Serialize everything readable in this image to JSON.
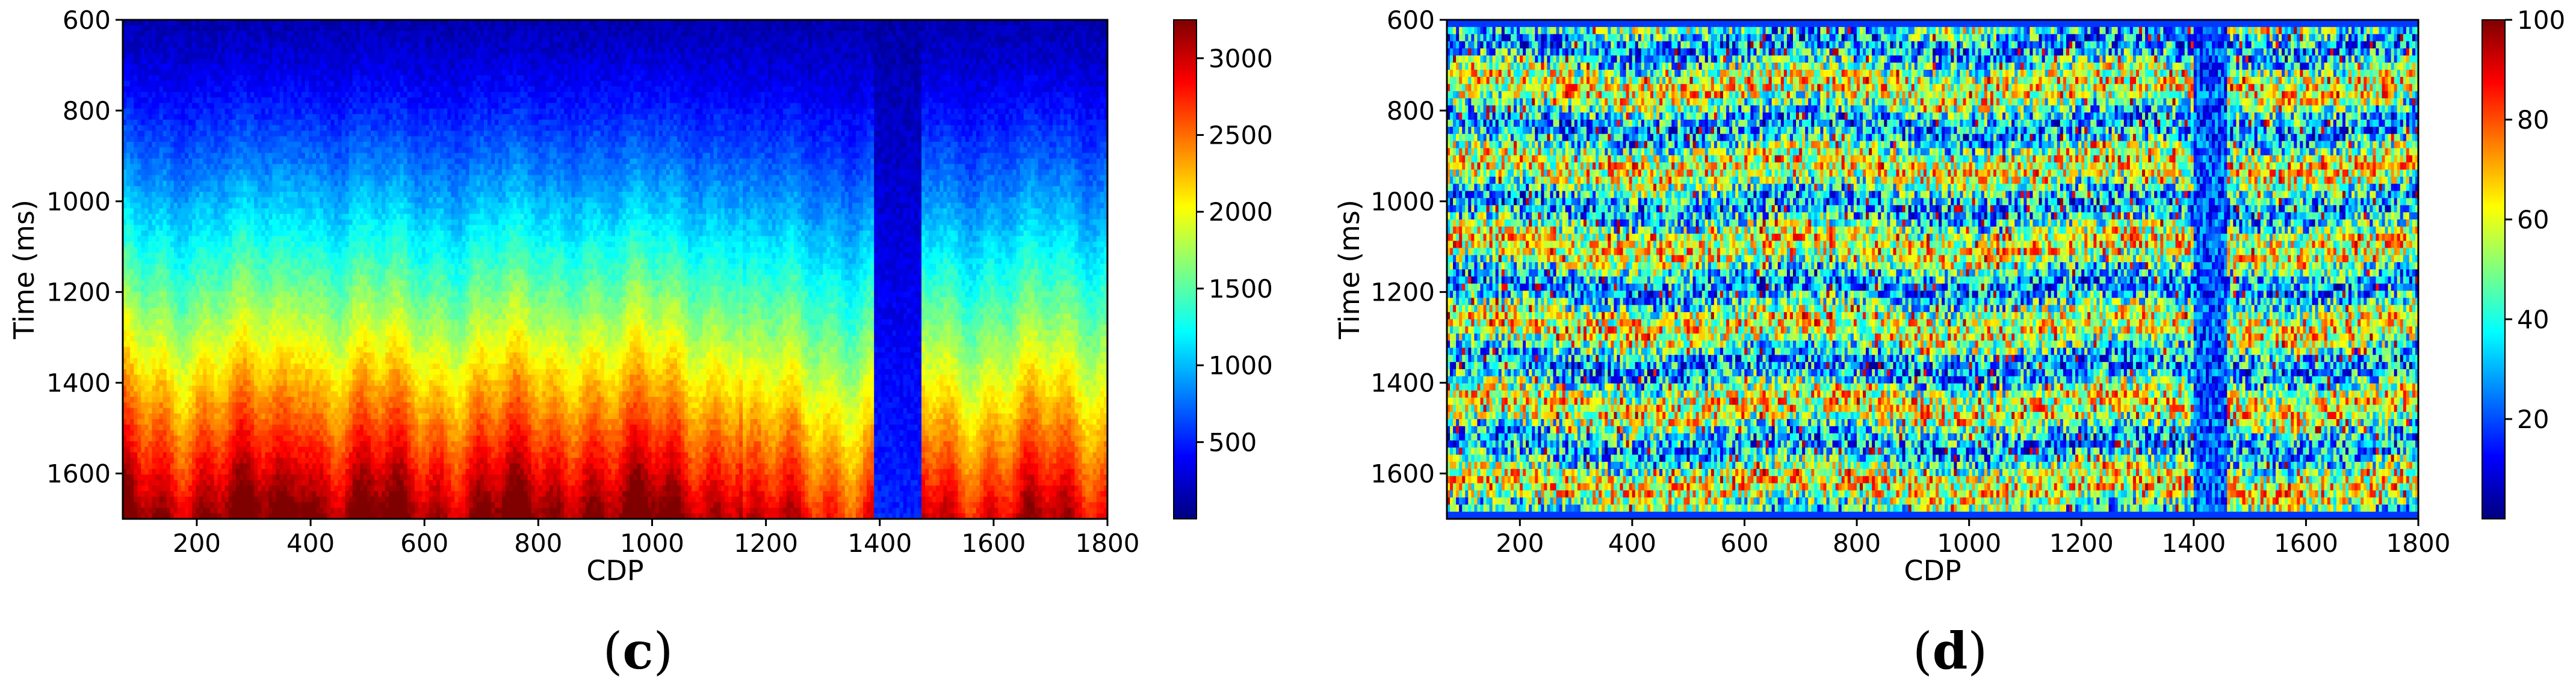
{
  "chart_data": [
    {
      "type": "heatmap",
      "panel_label": "c",
      "xlabel": "CDP",
      "ylabel": "Time (ms)",
      "xlim": [
        70,
        1800
      ],
      "ylim": [
        1700,
        600
      ],
      "x_ticks": [
        "200",
        "400",
        "600",
        "800",
        "1000",
        "1200",
        "1400",
        "1600",
        "1800"
      ],
      "y_ticks": [
        "600",
        "800",
        "1000",
        "1200",
        "1400",
        "1600"
      ],
      "colorbar": {
        "min": 0,
        "max": 3250,
        "ticks": [
          "500",
          "1000",
          "1500",
          "2000",
          "2500",
          "3000"
        ]
      },
      "colormap": "jet",
      "grid": false,
      "description_values": {
        "low_velocity_band_cdp": [
          1390,
          1470
        ],
        "surface_value": 150,
        "deep_value": 2900
      }
    },
    {
      "type": "heatmap",
      "panel_label": "d",
      "xlabel": "CDP",
      "ylabel": "Time (ms)",
      "xlim": [
        70,
        1800
      ],
      "ylim": [
        1700,
        600
      ],
      "x_ticks": [
        "200",
        "400",
        "600",
        "800",
        "1000",
        "1200",
        "1400",
        "1600",
        "1800"
      ],
      "y_ticks": [
        "600",
        "800",
        "1000",
        "1200",
        "1400",
        "1600"
      ],
      "colorbar": {
        "min": 0,
        "max": 100,
        "ticks": [
          "20",
          "40",
          "60",
          "80",
          "100"
        ]
      },
      "colormap": "jet",
      "grid": false
    }
  ],
  "captions": {
    "c": "c",
    "d": "d"
  }
}
